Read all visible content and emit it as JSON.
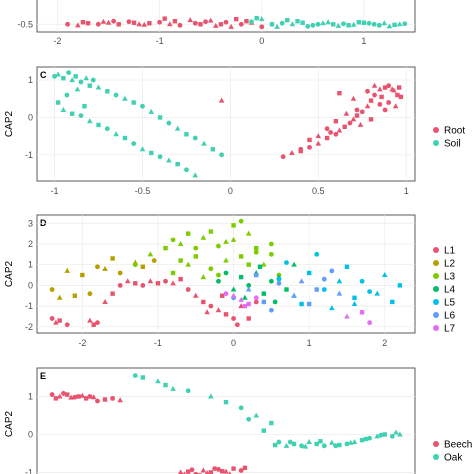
{
  "chart_data": [
    {
      "panel": "",
      "type": "scatter",
      "ylabel": "",
      "xlim": [
        -2.2,
        1.5
      ],
      "ylim": [
        -0.65,
        0.05
      ],
      "xticks": [
        -2,
        -1,
        0,
        1
      ],
      "yticks": [
        -0.5
      ],
      "series": [
        {
          "color": "#E8536E",
          "x": [
            -1.9,
            -1.8,
            -1.7,
            -1.6,
            -1.5,
            -1.4,
            -1.3,
            -1.2,
            -1.1,
            -1.0,
            -0.9,
            -0.85,
            -0.8,
            -0.7,
            -0.6,
            -0.55,
            -0.5,
            -0.4,
            -0.35,
            -0.3,
            -0.25,
            -0.2,
            -0.1,
            -1.75,
            -1.45,
            -1.15,
            -0.95,
            -0.65,
            -0.45,
            -0.15,
            0.0,
            -1.55,
            -1.25
          ],
          "y": [
            -0.5,
            -0.52,
            -0.48,
            -0.5,
            -0.47,
            -0.5,
            -0.45,
            -0.5,
            -0.48,
            -0.46,
            -0.5,
            -0.44,
            -0.52,
            -0.42,
            -0.5,
            -0.45,
            -0.43,
            -0.5,
            -0.46,
            -0.55,
            -0.4,
            -0.5,
            -0.47,
            -0.46,
            -0.44,
            -0.51,
            -0.39,
            -0.48,
            -0.53,
            -0.44,
            -0.55,
            -0.45,
            -0.47
          ]
        },
        {
          "color": "#3FD1B1",
          "x": [
            -0.1,
            0.0,
            0.1,
            0.2,
            0.3,
            0.4,
            0.5,
            0.6,
            0.7,
            0.8,
            0.9,
            1.0,
            1.1,
            1.2,
            1.3,
            1.4,
            0.15,
            0.35,
            0.55,
            0.75,
            0.95,
            1.15,
            1.35,
            0.25,
            0.45,
            0.65,
            0.85,
            1.05,
            1.25,
            -0.05
          ],
          "y": [
            -0.45,
            -0.4,
            -0.5,
            -0.48,
            -0.5,
            -0.47,
            -0.52,
            -0.48,
            -0.5,
            -0.49,
            -0.51,
            -0.47,
            -0.5,
            -0.48,
            -0.51,
            -0.49,
            -0.55,
            -0.44,
            -0.5,
            -0.53,
            -0.46,
            -0.52,
            -0.5,
            -0.42,
            -0.54,
            -0.46,
            -0.52,
            -0.48,
            -0.54,
            -0.38
          ]
        }
      ]
    },
    {
      "panel": "C",
      "type": "scatter",
      "ylabel": "CAP2",
      "xlim": [
        -1.1,
        1.05
      ],
      "ylim": [
        -1.7,
        1.35
      ],
      "xticks": [
        -1.0,
        -0.5,
        0.0,
        0.5,
        1.0
      ],
      "yticks": [
        -1,
        0,
        1
      ],
      "legend": [
        "Root",
        "Soil"
      ],
      "series": [
        {
          "name": "Root",
          "color": "#E8536E",
          "x": [
            0.3,
            0.35,
            0.4,
            0.45,
            0.5,
            0.55,
            0.6,
            0.62,
            0.65,
            0.68,
            0.7,
            0.72,
            0.75,
            0.78,
            0.8,
            0.82,
            0.85,
            0.88,
            0.9,
            0.92,
            0.95,
            0.78,
            0.82,
            0.86,
            0.9,
            0.94,
            0.97,
            0.72,
            0.66,
            0.6,
            0.55,
            0.5,
            0.45,
            0.4,
            0.74,
            0.8,
            0.88,
            0.93,
            0.96,
            0.85,
            0.7,
            0.62,
            0.57,
            -0.05
          ],
          "y": [
            -1.05,
            -0.95,
            -0.9,
            -0.8,
            -0.7,
            -0.55,
            -0.45,
            -0.35,
            -0.25,
            -0.15,
            -0.05,
            0.05,
            0.15,
            0.3,
            0.45,
            0.6,
            0.75,
            0.8,
            0.85,
            0.75,
            0.6,
            0.7,
            0.85,
            0.55,
            0.4,
            0.3,
            0.55,
            0.2,
            0.1,
            -0.1,
            -0.3,
            -0.5,
            -0.6,
            -0.85,
            -0.2,
            -0.05,
            0.2,
            0.72,
            0.8,
            0.35,
            0.5,
            0.65,
            -0.4,
            0.45
          ]
        },
        {
          "name": "Soil",
          "color": "#3FD1B1",
          "x": [
            -1.0,
            -0.98,
            -0.95,
            -0.92,
            -0.9,
            -0.88,
            -0.85,
            -0.82,
            -0.8,
            -0.78,
            -0.75,
            -0.7,
            -0.65,
            -0.6,
            -0.55,
            -0.5,
            -0.45,
            -0.4,
            -0.35,
            -0.3,
            -0.25,
            -0.2,
            -0.15,
            -0.1,
            -0.05,
            -0.95,
            -0.9,
            -0.85,
            -0.8,
            -0.75,
            -0.7,
            -0.65,
            -0.6,
            -0.55,
            -0.5,
            -0.45,
            -0.4,
            -0.35,
            -0.3,
            -0.25,
            -0.2,
            -0.98,
            -0.93,
            -0.87,
            -0.83
          ],
          "y": [
            1.1,
            1.15,
            1.05,
            1.2,
            1.0,
            1.1,
            0.95,
            1.05,
            0.85,
            1.0,
            0.8,
            0.7,
            0.6,
            0.5,
            0.4,
            0.3,
            0.15,
            0.0,
            -0.15,
            -0.3,
            -0.45,
            -0.55,
            -0.7,
            -0.85,
            -1.0,
            0.2,
            0.1,
            0.05,
            -0.1,
            -0.2,
            -0.3,
            -0.45,
            -0.55,
            -0.7,
            -0.85,
            -0.95,
            -1.05,
            -1.15,
            -1.25,
            -1.4,
            -1.55,
            0.4,
            0.6,
            0.75,
            0.3
          ]
        }
      ]
    },
    {
      "panel": "D",
      "type": "scatter",
      "ylabel": "CAP2",
      "xlim": [
        -2.6,
        2.4
      ],
      "ylim": [
        -2.3,
        3.4
      ],
      "xticks": [
        -2,
        -1,
        0,
        1,
        2
      ],
      "yticks": [
        -2,
        -1,
        0,
        1,
        2,
        3
      ],
      "legend": [
        "L1",
        "L2",
        "L3",
        "L4",
        "L5",
        "L6",
        "L7"
      ],
      "series": [
        {
          "name": "L1",
          "color": "#E8536E",
          "x": [
            -2.4,
            -2.35,
            -2.3,
            -2.2,
            -1.9,
            -1.85,
            -1.8,
            -1.7,
            -1.6,
            -1.5,
            -1.4,
            -1.3,
            -1.2,
            -1.1,
            -1.0,
            -0.9,
            -0.8,
            -0.7,
            -0.6,
            -0.5,
            -0.4,
            -0.3,
            -0.2,
            -0.1,
            0.0,
            0.1,
            0.2,
            0.3,
            -0.35,
            -0.15,
            0.05
          ],
          "y": [
            -1.6,
            -1.8,
            -1.7,
            -1.9,
            -1.7,
            -1.9,
            -1.8,
            -0.8,
            -0.4,
            0.0,
            0.2,
            0.1,
            0.0,
            0.2,
            0.1,
            0.2,
            0.1,
            0.3,
            -0.2,
            -0.5,
            -0.8,
            -1.0,
            -1.2,
            -1.4,
            -1.6,
            -1.0,
            -1.6,
            -0.8,
            -1.3,
            -0.5,
            -1.9
          ]
        },
        {
          "name": "L2",
          "color": "#B79F00",
          "x": [
            -2.4,
            -2.3,
            -2.1,
            -1.9,
            -1.7,
            -1.6,
            -1.5,
            -1.3,
            -1.2,
            -1.05,
            -2.2,
            -2.0,
            -1.8
          ],
          "y": [
            -0.2,
            -0.6,
            -0.5,
            -0.4,
            0.8,
            1.3,
            0.6,
            1.1,
            0.9,
            1.2,
            0.7,
            0.5,
            0.9
          ]
        },
        {
          "name": "L3",
          "color": "#7CCD00",
          "x": [
            -1.3,
            -1.1,
            -0.9,
            -0.8,
            -0.7,
            -0.6,
            -0.5,
            -0.4,
            -0.3,
            -0.2,
            -0.1,
            0.0,
            0.1,
            0.2,
            0.3,
            0.5,
            -0.6,
            -0.5,
            -0.3,
            -0.1,
            0.1,
            0.3,
            0.4,
            -0.8,
            -0.2,
            0.0,
            0.2,
            0.5,
            -0.4,
            -0.7,
            0.6
          ],
          "y": [
            1.0,
            1.5,
            1.8,
            2.2,
            2.0,
            2.5,
            1.8,
            2.3,
            2.6,
            1.9,
            2.1,
            2.9,
            3.1,
            2.5,
            1.8,
            2.0,
            1.0,
            1.4,
            0.8,
            1.2,
            1.4,
            1.6,
            1.0,
            0.6,
            0.5,
            2.2,
            1.0,
            1.5,
            0.4,
            1.2,
            0.5
          ]
        },
        {
          "name": "L4",
          "color": "#00BE67",
          "x": [
            -0.2,
            0.0,
            0.1,
            0.2,
            0.3,
            0.4,
            0.5,
            0.6,
            0.7,
            -0.1,
            0.15,
            0.35,
            0.55,
            0.8
          ],
          "y": [
            0.2,
            -0.2,
            0.4,
            0.0,
            0.6,
            -0.4,
            0.2,
            0.4,
            -0.2,
            0.6,
            -0.6,
            0.9,
            -0.8,
            1.0
          ]
        },
        {
          "name": "L5",
          "color": "#00C1E8",
          "x": [
            0.6,
            0.8,
            1.0,
            1.2,
            1.4,
            1.6,
            1.8,
            2.0,
            2.1,
            1.1,
            1.3,
            1.5,
            1.7,
            1.9,
            0.9,
            0.7,
            1.6,
            2.2
          ],
          "y": [
            0.3,
            -0.5,
            0.6,
            -0.2,
            0.2,
            -0.6,
            -0.3,
            0.5,
            -0.8,
            1.5,
            -1.1,
            0.9,
            0.2,
            -0.4,
            -0.9,
            1.1,
            -0.9,
            0.0
          ]
        },
        {
          "name": "L6",
          "color": "#619CFF",
          "x": [
            0.0,
            0.2,
            0.4,
            0.6,
            0.8,
            1.0,
            1.2,
            1.4,
            0.3,
            0.5,
            0.9,
            1.1,
            1.3
          ],
          "y": [
            -0.6,
            -0.2,
            -0.8,
            0.1,
            -0.5,
            -0.9,
            0.3,
            -0.4,
            0.5,
            -1.2,
            0.2,
            -0.2,
            0.7
          ]
        },
        {
          "name": "L7",
          "color": "#E36EF6",
          "x": [
            -0.1,
            0.1,
            0.2,
            0.3,
            1.5,
            1.7,
            1.8,
            0.0,
            0.15
          ],
          "y": [
            -0.4,
            -0.7,
            -0.9,
            -0.6,
            -1.5,
            -1.3,
            -1.8,
            -0.5,
            -1.0
          ]
        }
      ]
    },
    {
      "panel": "E",
      "type": "scatter",
      "ylabel": "CAP2",
      "xlim": [
        -2.6,
        2.4
      ],
      "ylim": [
        -1.2,
        1.75
      ],
      "xticks": [],
      "yticks": [
        -1,
        0,
        1
      ],
      "legend": [
        "Beech",
        "Oak"
      ],
      "series": [
        {
          "name": "Beech",
          "color": "#E8536E",
          "x": [
            -2.4,
            -2.3,
            -2.2,
            -2.1,
            -2.0,
            -1.95,
            -1.9,
            -1.85,
            -1.7,
            -1.6,
            -1.5,
            -2.35,
            -2.25,
            -2.15,
            -2.05,
            -1.8,
            -0.7,
            -0.6,
            -0.5,
            -0.4,
            -0.3,
            -0.2,
            -0.1,
            0.0,
            0.1,
            -0.65,
            -0.45,
            -0.25,
            -0.05,
            0.15,
            -0.55,
            -0.35,
            -0.15
          ],
          "y": [
            1.05,
            1.0,
            1.05,
            0.98,
            1.02,
            0.95,
            1.0,
            0.98,
            0.92,
            0.95,
            0.9,
            0.95,
            1.08,
            0.97,
            1.0,
            0.88,
            -1.0,
            -0.98,
            -1.05,
            -0.95,
            -1.0,
            -0.92,
            -0.98,
            -0.9,
            -0.95,
            -1.05,
            -1.08,
            -0.9,
            -1.05,
            -0.88,
            -0.93,
            -1.02,
            -0.97
          ]
        },
        {
          "name": "Oak",
          "color": "#3FD1B1",
          "x": [
            -1.3,
            -1.0,
            -0.9,
            -0.6,
            -0.3,
            -0.1,
            0.1,
            0.3,
            0.5,
            0.6,
            0.7,
            0.8,
            0.9,
            1.0,
            1.1,
            1.2,
            1.3,
            1.4,
            1.5,
            1.6,
            1.7,
            1.8,
            1.9,
            2.0,
            2.1,
            2.2,
            0.55,
            0.75,
            0.95,
            1.15,
            1.35,
            1.55,
            1.75,
            1.95,
            2.15,
            0.4,
            0.2,
            -0.8,
            -1.2
          ],
          "y": [
            1.55,
            1.4,
            1.3,
            1.15,
            1.0,
            0.85,
            0.7,
            0.5,
            0.3,
            -0.2,
            -0.3,
            -0.25,
            -0.3,
            -0.2,
            -0.25,
            -0.3,
            -0.22,
            -0.28,
            -0.25,
            -0.2,
            -0.15,
            -0.1,
            -0.05,
            0.0,
            -0.05,
            0.0,
            -0.28,
            -0.2,
            -0.32,
            -0.18,
            -0.3,
            -0.22,
            -0.12,
            -0.02,
            0.05,
            0.1,
            0.4,
            1.2,
            1.5
          ]
        }
      ]
    }
  ]
}
